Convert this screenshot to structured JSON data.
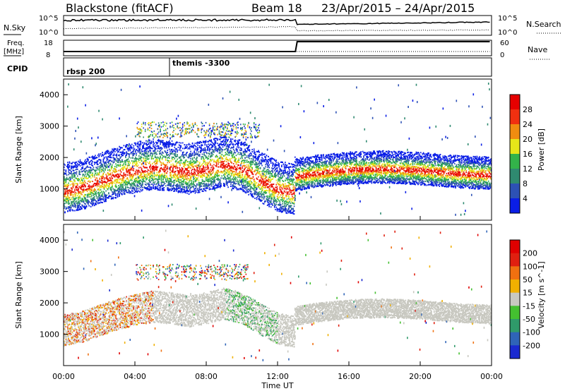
{
  "header": {
    "station": "Blackstone (fitACF)",
    "beam": "Beam 18",
    "date_range": "23/Apr/2015 – 24/Apr/2015"
  },
  "top_panels": {
    "nsky_label": "N.Sky",
    "nsearch_label": "N.Search",
    "freq_label_line1": "Freq.",
    "freq_label_line2": "[MHz]",
    "nave_label": "Nave",
    "cpid_label": "CPID",
    "nsky_ticks": [
      "10^5",
      "10^0"
    ],
    "nsearch_ticks": [
      "10^5",
      "10^0"
    ],
    "freq_ticks": [
      "18",
      "8"
    ],
    "nave_ticks": [
      "60",
      "0"
    ],
    "cpid_segments": [
      {
        "start_hour": 0.0,
        "end_hour": 6.0,
        "label": "rbsp 200"
      },
      {
        "start_hour": 6.0,
        "end_hour": 24.0,
        "label": "themis -3300"
      }
    ]
  },
  "x_axis": {
    "label": "Time UT",
    "ticks": [
      "00:00",
      "04:00",
      "08:00",
      "12:00",
      "16:00",
      "20:00",
      "00:00"
    ]
  },
  "chart_data": [
    {
      "type": "heatmap",
      "panel": "power",
      "ylabel": "Slant Range [km]",
      "yticks": [
        "1000",
        "2000",
        "3000",
        "4000"
      ],
      "ylim": [
        0,
        4500
      ],
      "xlim": [
        0,
        24
      ],
      "colorbar_label": "Power [dB]",
      "colorbar_ticks": [
        "4",
        "8",
        "12",
        "16",
        "20",
        "24",
        "28"
      ],
      "colorbar_colors": [
        "#0a1ee6",
        "#2d51b5",
        "#2f8a70",
        "#33b34a",
        "#e6e619",
        "#f08c10",
        "#f03010",
        "#e60000"
      ],
      "scatter_trace_km": [
        [
          0,
          950
        ],
        [
          1,
          1050
        ],
        [
          2,
          1250
        ],
        [
          3,
          1450
        ],
        [
          4,
          1600
        ],
        [
          5,
          1700
        ],
        [
          6,
          1650
        ],
        [
          7,
          1550
        ],
        [
          8,
          1650
        ],
        [
          9,
          1800
        ],
        [
          10,
          1650
        ],
        [
          11,
          1300
        ],
        [
          12,
          1000
        ],
        [
          12.9,
          900
        ],
        [
          13,
          1400
        ],
        [
          14,
          1500
        ],
        [
          16,
          1620
        ],
        [
          18,
          1650
        ],
        [
          20,
          1600
        ],
        [
          22,
          1500
        ],
        [
          24,
          1450
        ]
      ]
    },
    {
      "type": "heatmap",
      "panel": "velocity",
      "ylabel": "Slant Range [km]",
      "yticks": [
        "1000",
        "2000",
        "3000",
        "4000"
      ],
      "ylim": [
        0,
        4500
      ],
      "xlim": [
        0,
        24
      ],
      "colorbar_label": "Velocity [m s^-1]",
      "colorbar_ticks": [
        "200",
        "100",
        "50",
        "15",
        "-15",
        "-50",
        "-100",
        "-200"
      ],
      "colorbar_colors": [
        "#1a2ad0",
        "#2f64b8",
        "#2f9a6a",
        "#44c030",
        "#c8c8c0",
        "#f0b000",
        "#f07010",
        "#e02010",
        "#e00000"
      ]
    }
  ]
}
